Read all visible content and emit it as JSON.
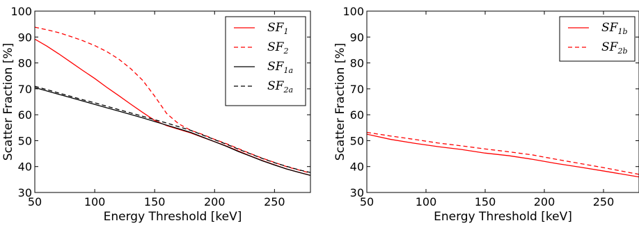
{
  "chart_data": [
    {
      "type": "line",
      "xlabel": "Energy Threshold [keV]",
      "ylabel": "Scatter Fraction [%]",
      "xlim": [
        50,
        280
      ],
      "ylim": [
        30,
        100
      ],
      "xticks": [
        50,
        100,
        150,
        200,
        250
      ],
      "yticks": [
        30,
        40,
        50,
        60,
        70,
        80,
        90,
        100
      ],
      "grid": false,
      "legend_position": "top-right",
      "series": [
        {
          "name": "SF",
          "sub": "1",
          "color": "#ff0000",
          "dash": "solid",
          "x": [
            50,
            60,
            70,
            80,
            90,
            100,
            110,
            120,
            130,
            140,
            150,
            160,
            170,
            180,
            190,
            200,
            210,
            220,
            230,
            240,
            250,
            260,
            270,
            280
          ],
          "y": [
            89.2,
            86.5,
            83.5,
            80.3,
            77.1,
            74.0,
            70.6,
            67.4,
            64.1,
            60.9,
            57.8,
            55.8,
            54.4,
            53.0,
            51.3,
            49.6,
            47.9,
            46.0,
            44.1,
            42.3,
            40.7,
            39.1,
            37.8,
            36.6
          ]
        },
        {
          "name": "SF",
          "sub": "2",
          "color": "#ff0000",
          "dash": "dashed",
          "x": [
            50,
            60,
            70,
            80,
            90,
            100,
            110,
            120,
            130,
            140,
            150,
            160,
            170,
            180,
            190,
            200,
            210,
            220,
            230,
            240,
            250,
            260,
            270,
            280
          ],
          "y": [
            93.8,
            92.8,
            91.7,
            90.2,
            88.6,
            86.7,
            84.4,
            81.5,
            77.8,
            73.3,
            67.2,
            60.5,
            56.5,
            54.0,
            52.4,
            50.5,
            48.8,
            46.9,
            45.0,
            43.2,
            41.6,
            40.0,
            38.7,
            37.5
          ]
        },
        {
          "name": "SF",
          "sub": "1a",
          "color": "#000000",
          "dash": "solid",
          "x": [
            50,
            60,
            70,
            80,
            90,
            100,
            110,
            120,
            130,
            140,
            150,
            160,
            170,
            180,
            190,
            200,
            210,
            220,
            230,
            240,
            250,
            260,
            270,
            280
          ],
          "y": [
            70.5,
            69.2,
            67.9,
            66.6,
            65.3,
            64.0,
            62.7,
            61.4,
            60.1,
            58.8,
            57.4,
            56.0,
            54.6,
            53.2,
            51.4,
            49.6,
            47.8,
            45.8,
            44.0,
            42.2,
            40.6,
            39.1,
            37.8,
            36.6
          ]
        },
        {
          "name": "SF",
          "sub": "2a",
          "color": "#000000",
          "dash": "dashed",
          "x": [
            50,
            60,
            70,
            80,
            90,
            100,
            110,
            120,
            130,
            140,
            150,
            160,
            170,
            180,
            190,
            200,
            210,
            220,
            230,
            240,
            250,
            260,
            270,
            280
          ],
          "y": [
            71.0,
            69.7,
            68.4,
            67.1,
            65.8,
            64.6,
            63.3,
            62.0,
            60.7,
            59.4,
            58.1,
            56.8,
            55.4,
            54.0,
            52.2,
            50.4,
            48.6,
            46.7,
            44.9,
            43.1,
            41.5,
            40.1,
            38.8,
            37.7
          ]
        }
      ]
    },
    {
      "type": "line",
      "xlabel": "Energy Threshold [keV]",
      "ylabel": "Scatter Fraction [%]",
      "xlim": [
        50,
        280
      ],
      "ylim": [
        30,
        100
      ],
      "xticks": [
        50,
        100,
        150,
        200,
        250
      ],
      "yticks": [
        30,
        40,
        50,
        60,
        70,
        80,
        90,
        100
      ],
      "grid": false,
      "legend_position": "top-right",
      "series": [
        {
          "name": "SF",
          "sub": "1b",
          "color": "#ff0000",
          "dash": "solid",
          "x": [
            50,
            70,
            90,
            110,
            130,
            150,
            170,
            190,
            210,
            230,
            250,
            280
          ],
          "y": [
            52.5,
            50.5,
            49.0,
            47.7,
            46.6,
            45.2,
            44.2,
            42.8,
            41.2,
            39.8,
            38.3,
            36.0
          ]
        },
        {
          "name": "SF",
          "sub": "2b",
          "color": "#ff0000",
          "dash": "dashed",
          "x": [
            50,
            70,
            90,
            110,
            130,
            150,
            170,
            190,
            210,
            230,
            250,
            280
          ],
          "y": [
            53.2,
            51.8,
            50.5,
            49.1,
            48.0,
            46.8,
            45.7,
            44.5,
            42.8,
            41.2,
            39.6,
            37.0
          ]
        }
      ]
    }
  ]
}
